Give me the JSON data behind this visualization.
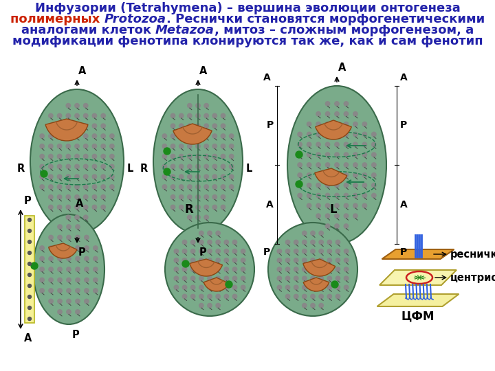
{
  "bg_color": "#ffffff",
  "text_color_dark": "#2222aa",
  "text_color_red": "#cc2200",
  "text_color_black": "#000000",
  "cell_color": "#7aab8a",
  "cell_border": "#3a6a4a",
  "dot_color": "#888888",
  "dashed_color": "#1a7a4a",
  "oral_color": "#c87941",
  "green_dot": "#1a8a1a",
  "font_size_title": 13.0,
  "font_size_label": 10.5,
  "line1": "Инфузории (Tetrahymena) – вершина эволюции онтогенеза",
  "line2_red": "полимерных",
  "line2_italic": "Protozoa",
  "line2_rest": ". Реснички становятся морфогенетическими",
  "line3_pre": "аналогами клеток ",
  "line3_italic": "Metazoa",
  "line3_rest": ", митоз – сложным морфогенезом, а",
  "line4": "модификации фенотипа клонируются так же, как и сам фенотип",
  "label_resnichka": "ресничка",
  "label_centriole": "центриоль",
  "label_cfm": "ЦФМ"
}
